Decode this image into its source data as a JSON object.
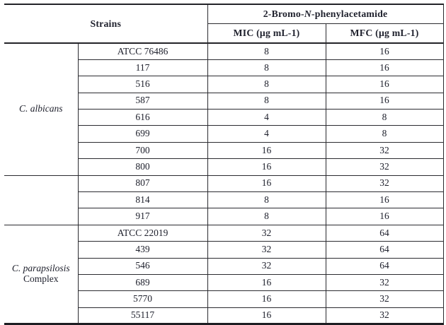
{
  "table": {
    "header": {
      "strains_label": "Strains",
      "compound_prefix": "2-Bromo-",
      "compound_italic": "N",
      "compound_suffix": "-phenylacetamide",
      "mic_label": "MIC (μg mL-1)",
      "mfc_label": "MFC (μg mL-1)"
    },
    "groups": [
      {
        "label_italic": "C. albicans",
        "label_roman": "",
        "rows": [
          {
            "strain": "ATCC 76486",
            "mic": "8",
            "mfc": "16"
          },
          {
            "strain": "117",
            "mic": "8",
            "mfc": "16"
          },
          {
            "strain": "516",
            "mic": "8",
            "mfc": "16"
          },
          {
            "strain": "587",
            "mic": "8",
            "mfc": "16"
          },
          {
            "strain": "616",
            "mic": "4",
            "mfc": "8"
          },
          {
            "strain": "699",
            "mic": "4",
            "mfc": "8"
          },
          {
            "strain": "700",
            "mic": "16",
            "mfc": "32"
          },
          {
            "strain": "800",
            "mic": "16",
            "mfc": "32"
          }
        ]
      },
      {
        "label_italic": "",
        "label_roman": "",
        "rows": [
          {
            "strain": "807",
            "mic": "16",
            "mfc": "32"
          },
          {
            "strain": "814",
            "mic": "8",
            "mfc": "16"
          },
          {
            "strain": "917",
            "mic": "8",
            "mfc": "16"
          }
        ]
      },
      {
        "label_italic": "C. parapsilosis",
        "label_roman": "Complex",
        "rows": [
          {
            "strain": "ATCC 22019",
            "mic": "32",
            "mfc": "64"
          },
          {
            "strain": "439",
            "mic": "32",
            "mfc": "64"
          },
          {
            "strain": "546",
            "mic": "32",
            "mfc": "64"
          },
          {
            "strain": "689",
            "mic": "16",
            "mfc": "32"
          },
          {
            "strain": "5770",
            "mic": "16",
            "mfc": "32"
          },
          {
            "strain": "55117",
            "mic": "16",
            "mfc": "32"
          }
        ]
      }
    ],
    "colors": {
      "ink": "#20222e",
      "line": "#2b2b30",
      "background": "#ffffff"
    }
  }
}
